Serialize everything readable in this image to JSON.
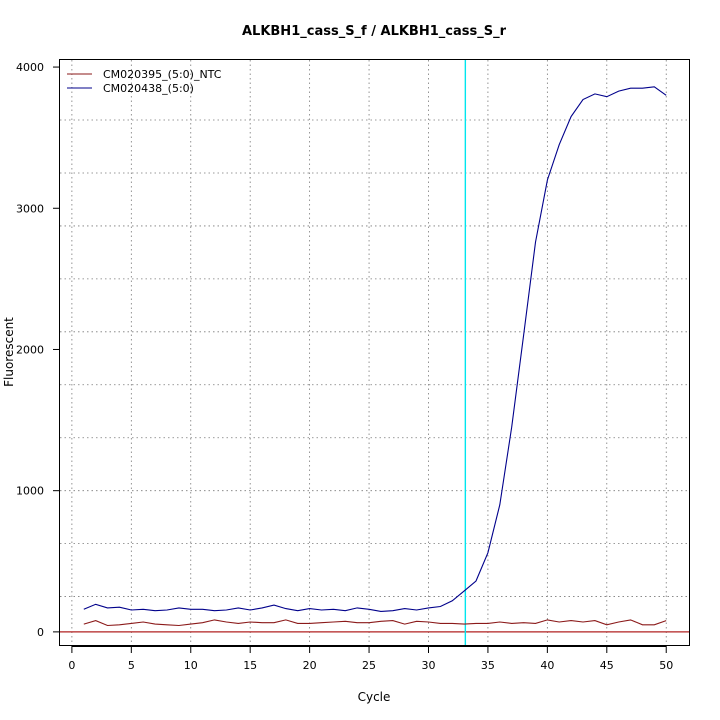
{
  "chart_data": {
    "type": "line",
    "title": "ALKBH1_cass_S_f / ALKBH1_cass_S_r",
    "xlabel": "Cycle",
    "ylabel": "Fluorescent",
    "xlim": [
      -1,
      52
    ],
    "ylim": [
      -100,
      4050
    ],
    "x_ticks": [
      0,
      5,
      10,
      15,
      20,
      25,
      30,
      35,
      40,
      45,
      50
    ],
    "y_ticks": [
      0,
      1000,
      2000,
      3000,
      4000
    ],
    "y_minor_grid": [
      250,
      625,
      1000,
      1375,
      1750,
      2125,
      2500,
      2875,
      3250,
      3625
    ],
    "x_grid": [
      0,
      5,
      10,
      15,
      20,
      25,
      30,
      35,
      40,
      45,
      50
    ],
    "grid": "dotted",
    "legend_position": "top-left",
    "threshold_x": 33.1,
    "threshold_color": "#00e5ee",
    "baseline_y": 0,
    "baseline_color": "#b22222",
    "x": [
      1,
      2,
      3,
      4,
      5,
      6,
      7,
      8,
      9,
      10,
      11,
      12,
      13,
      14,
      15,
      16,
      17,
      18,
      19,
      20,
      21,
      22,
      23,
      24,
      25,
      26,
      27,
      28,
      29,
      30,
      31,
      32,
      33,
      34,
      35,
      36,
      37,
      38,
      39,
      40,
      41,
      42,
      43,
      44,
      45,
      46,
      47,
      48,
      49,
      50
    ],
    "series": [
      {
        "name": "CM020395_(5:0)_NTC",
        "color": "#8b1a1a",
        "values": [
          55,
          80,
          45,
          50,
          60,
          70,
          55,
          50,
          45,
          55,
          65,
          85,
          70,
          60,
          70,
          65,
          65,
          85,
          60,
          60,
          65,
          70,
          75,
          65,
          65,
          75,
          80,
          55,
          75,
          70,
          60,
          60,
          55,
          60,
          60,
          70,
          60,
          65,
          60,
          85,
          70,
          80,
          70,
          80,
          50,
          70,
          85,
          50,
          50,
          80
        ]
      },
      {
        "name": "CM020438_(5:0)",
        "color": "#00008b",
        "values": [
          160,
          195,
          170,
          175,
          155,
          160,
          150,
          155,
          170,
          160,
          160,
          150,
          155,
          170,
          155,
          170,
          190,
          165,
          150,
          165,
          155,
          160,
          150,
          170,
          160,
          145,
          150,
          165,
          155,
          170,
          180,
          220,
          290,
          360,
          560,
          900,
          1450,
          2100,
          2760,
          3200,
          3450,
          3650,
          3770,
          3810,
          3790,
          3830,
          3850,
          3850,
          3860,
          3800
        ]
      }
    ]
  }
}
